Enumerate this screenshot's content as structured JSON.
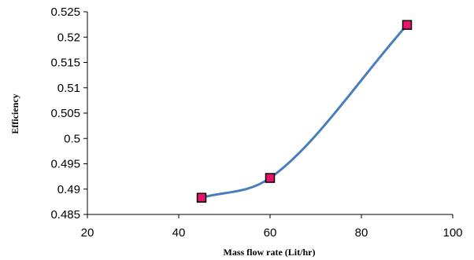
{
  "chart_data": {
    "type": "line",
    "title": "",
    "xlabel": "Mass flow rate (Lit/hr)",
    "ylabel": "Efficiency",
    "xlim": [
      20,
      100
    ],
    "ylim": [
      0.485,
      0.525
    ],
    "x_ticks": [
      20,
      40,
      60,
      80,
      100
    ],
    "x_tick_labels": [
      "20",
      "40",
      "60",
      "80",
      "100"
    ],
    "y_ticks": [
      0.485,
      0.49,
      0.495,
      0.5,
      0.505,
      0.51,
      0.515,
      0.52,
      0.525
    ],
    "y_tick_labels": [
      "0.485",
      "0.49",
      "0.495",
      "0.5",
      "0.505",
      "0.51",
      "0.515",
      "0.52",
      "0.525"
    ],
    "grid": false,
    "legend": "none",
    "smoothed": true,
    "series": [
      {
        "x": [
          45,
          60,
          90
        ],
        "values": [
          0.4883,
          0.4922,
          0.5224
        ],
        "line_color": "#4A7EBB",
        "marker": "square",
        "marker_fill": "#E8146C",
        "marker_edge": "#000000"
      }
    ]
  }
}
